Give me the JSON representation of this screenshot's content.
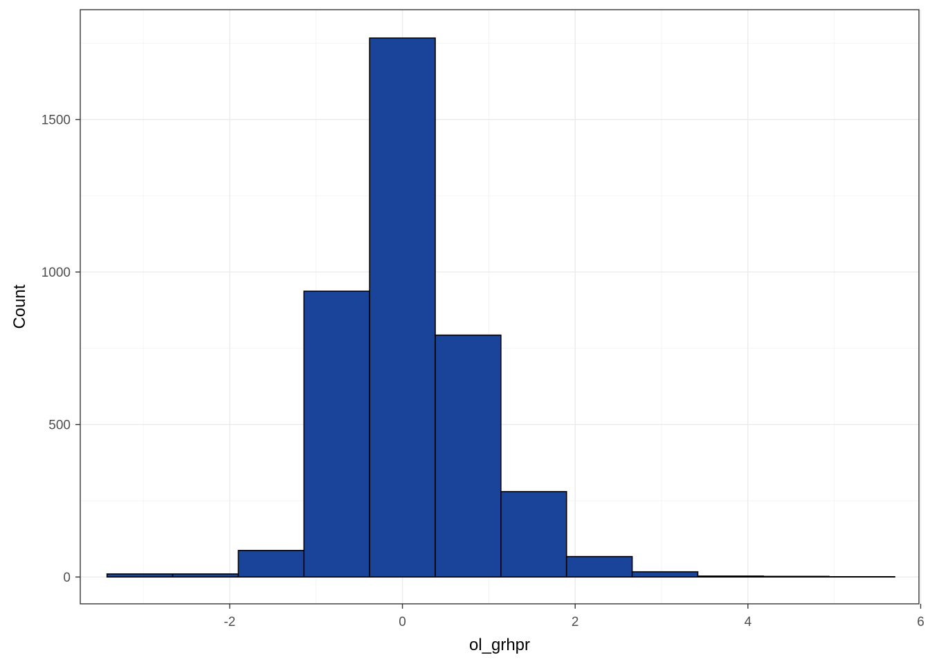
{
  "chart_data": {
    "type": "bar",
    "subtype": "histogram",
    "title": "",
    "xlabel": "ol_grhpr",
    "ylabel": "Count",
    "xlim": [
      -3.73,
      5.98
    ],
    "ylim": [
      -88,
      1860
    ],
    "x_ticks": [
      -2,
      0,
      2,
      4,
      6
    ],
    "y_ticks": [
      0,
      500,
      1000,
      1500
    ],
    "x_tick_labels": [
      "-2",
      "0",
      "2",
      "4",
      "6"
    ],
    "y_tick_labels": [
      "0",
      "500",
      "1000",
      "1500"
    ],
    "grid": true,
    "legend": "none",
    "bar_color": "#1a4499",
    "edge_color": "#000000",
    "bins": [
      {
        "x0": -3.42,
        "x1": -2.66,
        "count": 10
      },
      {
        "x0": -2.66,
        "x1": -1.9,
        "count": 10
      },
      {
        "x0": -1.9,
        "x1": -1.14,
        "count": 87
      },
      {
        "x0": -1.14,
        "x1": -0.38,
        "count": 937
      },
      {
        "x0": -0.38,
        "x1": 0.38,
        "count": 1767
      },
      {
        "x0": 0.38,
        "x1": 1.14,
        "count": 793
      },
      {
        "x0": 1.14,
        "x1": 1.9,
        "count": 280
      },
      {
        "x0": 1.9,
        "x1": 2.66,
        "count": 67
      },
      {
        "x0": 2.66,
        "x1": 3.42,
        "count": 17
      },
      {
        "x0": 3.42,
        "x1": 4.18,
        "count": 3
      },
      {
        "x0": 4.18,
        "x1": 4.94,
        "count": 2
      },
      {
        "x0": 4.94,
        "x1": 5.7,
        "count": 1
      }
    ]
  }
}
